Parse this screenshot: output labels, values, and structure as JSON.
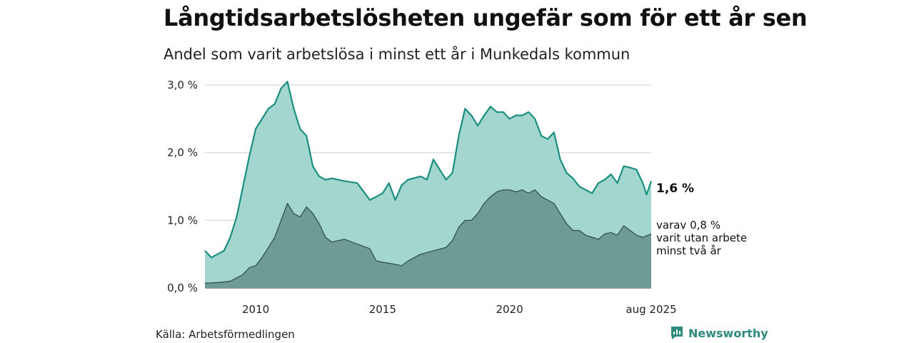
{
  "title": "Långtidsarbetslösheten ungefär som för ett år sen",
  "subtitle": "Andel som varit arbetslösa i minst ett år i Munkedals kommun",
  "source": "Källa: Arbetsförmedlingen",
  "brand": "Newsworthy",
  "brand_icon": "newsworthy-logo-icon",
  "colors": {
    "total_fill": "#a3d6cf",
    "total_line": "#1a8f80",
    "longterm_fill": "#6f9b95",
    "longterm_line": "#2d4a47",
    "grid": "#dddddd",
    "brand": "#2f8a7e"
  },
  "annotations": {
    "total_value": "1,6 %",
    "longterm_line1": "varav 0,8 %",
    "longterm_line2": "varit utan arbete",
    "longterm_line3": "minst två år"
  },
  "chart_data": {
    "type": "area",
    "title": "Långtidsarbetslösheten ungefär som för ett år sen",
    "subtitle": "Andel som varit arbetslösa i minst ett år i Munkedals kommun",
    "xlabel": "",
    "ylabel": "",
    "y_unit": "%",
    "ylim": [
      0,
      3.2
    ],
    "y_ticks": [
      0,
      1,
      2,
      3
    ],
    "y_tick_labels": [
      "0,0 %",
      "1,0 %",
      "2,0 %",
      "3,0 %"
    ],
    "x_ticks": [
      2010,
      2015,
      2020,
      2025.583
    ],
    "x_tick_labels": [
      "2010",
      "2015",
      "2020",
      "aug 2025"
    ],
    "xlim": [
      2008.0,
      2025.583
    ],
    "grid": "horizontal",
    "legend": "none",
    "series": [
      {
        "key": "total",
        "x": [
          2008.0,
          2008.25,
          2008.5,
          2008.75,
          2009.0,
          2009.25,
          2009.5,
          2009.75,
          2010.0,
          2010.25,
          2010.5,
          2010.75,
          2011.0,
          2011.25,
          2011.5,
          2011.75,
          2012.0,
          2012.25,
          2012.5,
          2012.75,
          2013.0,
          2013.5,
          2014.0,
          2014.5,
          2014.75,
          2015.0,
          2015.25,
          2015.5,
          2015.75,
          2016.0,
          2016.5,
          2016.75,
          2017.0,
          2017.25,
          2017.5,
          2017.75,
          2018.0,
          2018.25,
          2018.5,
          2018.75,
          2019.0,
          2019.25,
          2019.5,
          2019.75,
          2020.0,
          2020.25,
          2020.5,
          2020.75,
          2021.0,
          2021.25,
          2021.5,
          2021.75,
          2022.0,
          2022.25,
          2022.5,
          2022.75,
          2023.0,
          2023.25,
          2023.5,
          2023.75,
          2024.0,
          2024.25,
          2024.5,
          2024.75,
          2025.0,
          2025.25,
          2025.4,
          2025.583
        ],
        "y": [
          0.55,
          0.45,
          0.5,
          0.55,
          0.75,
          1.05,
          1.5,
          1.95,
          2.35,
          2.5,
          2.65,
          2.72,
          2.95,
          3.05,
          2.65,
          2.35,
          2.25,
          1.8,
          1.65,
          1.6,
          1.62,
          1.58,
          1.55,
          1.3,
          1.35,
          1.4,
          1.55,
          1.3,
          1.52,
          1.6,
          1.65,
          1.6,
          1.9,
          1.75,
          1.6,
          1.7,
          2.25,
          2.65,
          2.55,
          2.4,
          2.55,
          2.68,
          2.6,
          2.6,
          2.5,
          2.55,
          2.55,
          2.6,
          2.5,
          2.25,
          2.2,
          2.3,
          1.9,
          1.7,
          1.62,
          1.5,
          1.45,
          1.4,
          1.55,
          1.6,
          1.68,
          1.55,
          1.8,
          1.78,
          1.75,
          1.55,
          1.38,
          1.58
        ]
      },
      {
        "key": "longterm",
        "x": [
          2008.0,
          2008.5,
          2009.0,
          2009.5,
          2009.75,
          2010.0,
          2010.25,
          2010.5,
          2010.75,
          2011.0,
          2011.25,
          2011.5,
          2011.75,
          2012.0,
          2012.25,
          2012.5,
          2012.75,
          2013.0,
          2013.5,
          2014.0,
          2014.5,
          2014.75,
          2015.0,
          2015.5,
          2015.75,
          2016.0,
          2016.5,
          2017.0,
          2017.5,
          2017.75,
          2018.0,
          2018.25,
          2018.5,
          2018.75,
          2019.0,
          2019.25,
          2019.5,
          2019.75,
          2020.0,
          2020.25,
          2020.5,
          2020.75,
          2021.0,
          2021.25,
          2021.5,
          2021.75,
          2022.0,
          2022.25,
          2022.5,
          2022.75,
          2023.0,
          2023.25,
          2023.5,
          2023.75,
          2024.0,
          2024.25,
          2024.5,
          2024.75,
          2025.0,
          2025.25,
          2025.583
        ],
        "y": [
          0.07,
          0.08,
          0.1,
          0.2,
          0.3,
          0.33,
          0.45,
          0.6,
          0.75,
          1.0,
          1.25,
          1.1,
          1.05,
          1.2,
          1.1,
          0.95,
          0.75,
          0.68,
          0.72,
          0.65,
          0.58,
          0.4,
          0.38,
          0.35,
          0.33,
          0.4,
          0.5,
          0.55,
          0.6,
          0.7,
          0.9,
          1.0,
          1.0,
          1.1,
          1.25,
          1.35,
          1.42,
          1.45,
          1.45,
          1.42,
          1.45,
          1.4,
          1.45,
          1.35,
          1.3,
          1.25,
          1.1,
          0.95,
          0.85,
          0.85,
          0.78,
          0.75,
          0.72,
          0.8,
          0.82,
          0.78,
          0.92,
          0.85,
          0.78,
          0.75,
          0.8
        ]
      }
    ]
  }
}
